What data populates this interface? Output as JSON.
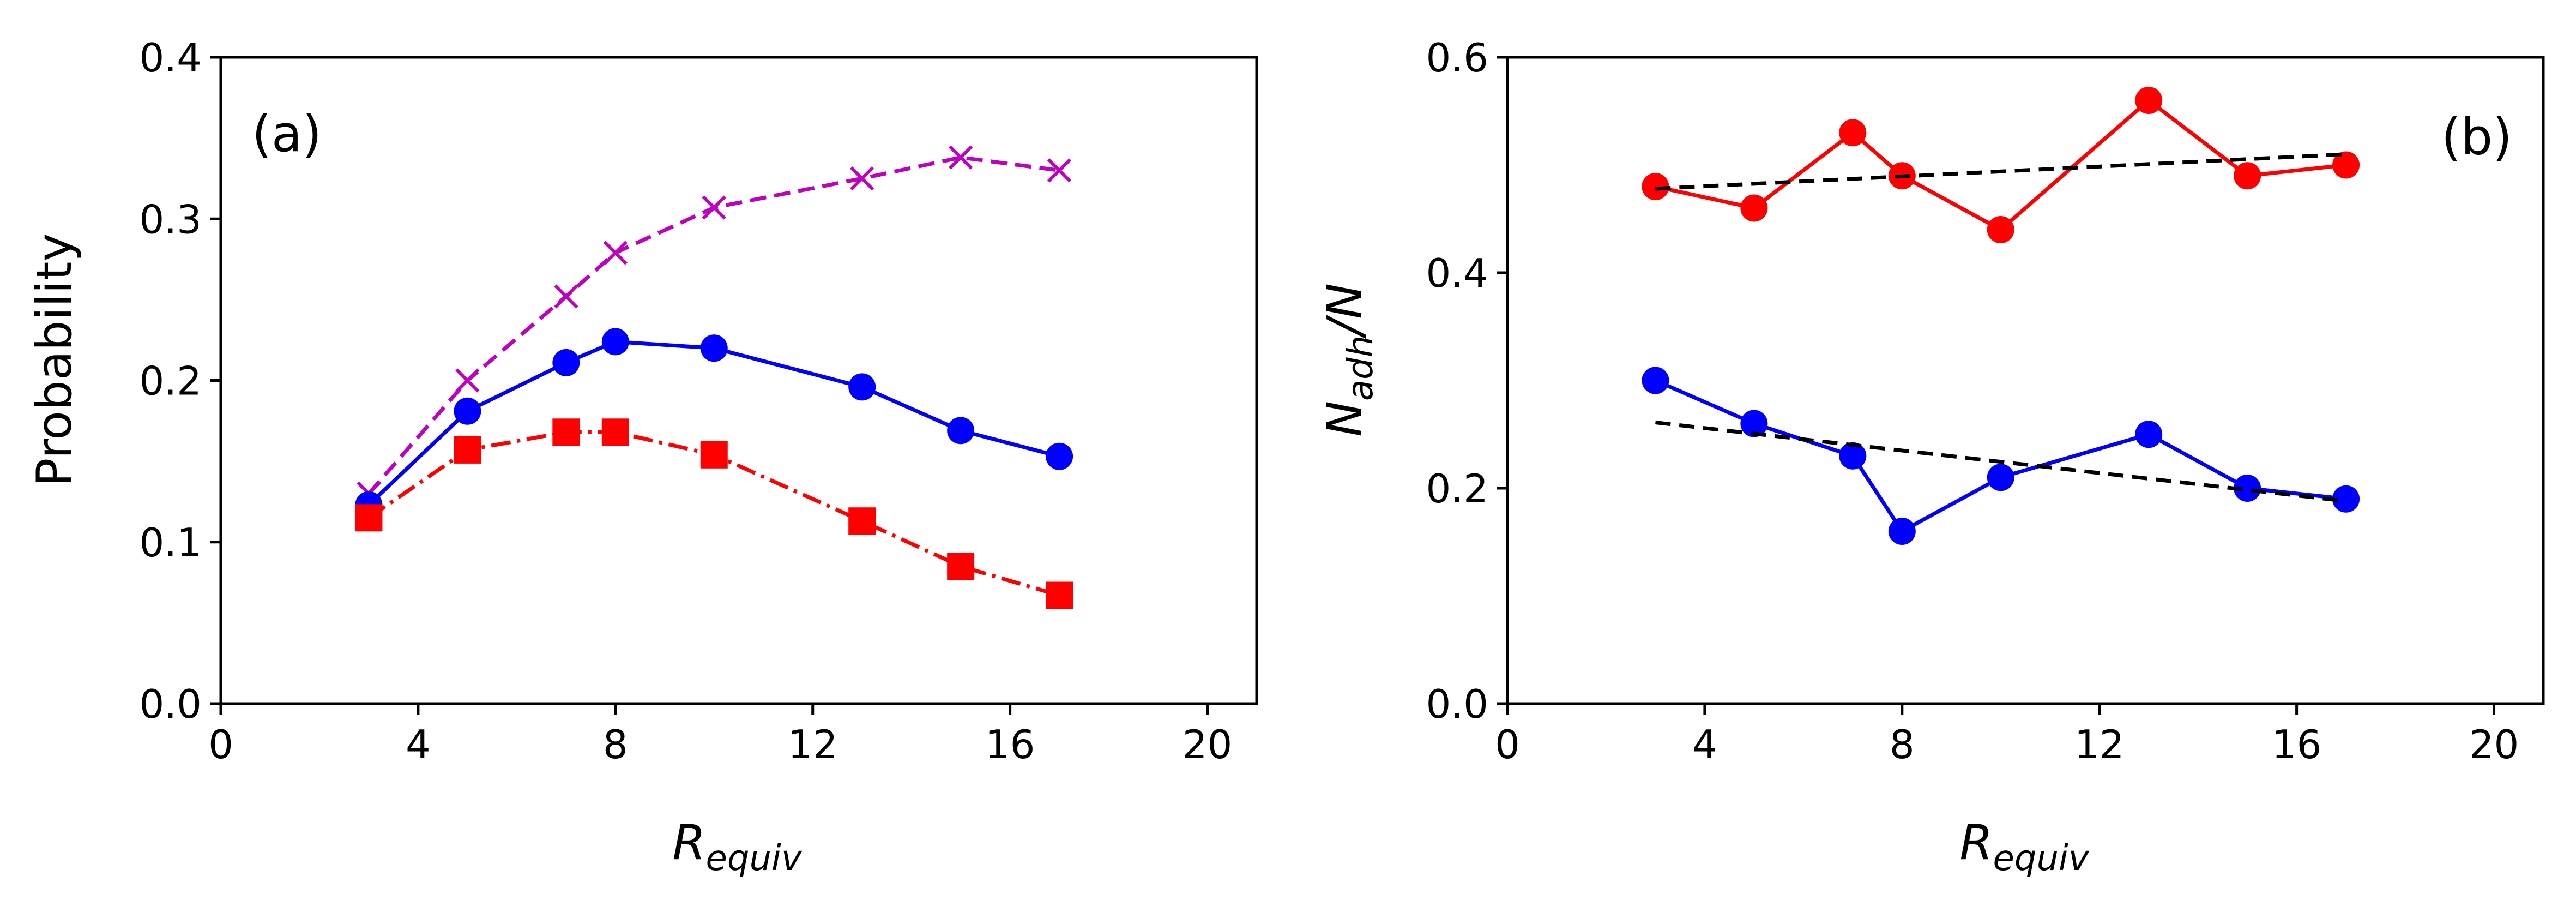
{
  "chart_data": [
    {
      "type": "line",
      "panel_label": "(a)",
      "xlabel_main": "R",
      "xlabel_sub": "equiv",
      "ylabel": "Probability",
      "xlim": [
        0,
        21
      ],
      "ylim": [
        0,
        0.4
      ],
      "xticks": [
        0,
        4,
        8,
        12,
        16,
        20
      ],
      "yticks": [
        0.0,
        0.1,
        0.2,
        0.3,
        0.4
      ],
      "xtick_labels": [
        "0",
        "4",
        "8",
        "12",
        "16",
        "20"
      ],
      "ytick_labels": [
        "0.0",
        "0.1",
        "0.2",
        "0.3",
        "0.4"
      ],
      "x": [
        3,
        5,
        7,
        8,
        10,
        13,
        15,
        17
      ],
      "series": [
        {
          "name": "magenta-dashed-x",
          "color": "#bf00bf",
          "dash": "dashed",
          "marker": "x",
          "values": [
            0.13,
            0.2,
            0.252,
            0.279,
            0.307,
            0.325,
            0.338,
            0.33
          ]
        },
        {
          "name": "blue-solid-circle",
          "color": "#0000ff",
          "dash": "solid",
          "marker": "circle",
          "values": [
            0.123,
            0.181,
            0.211,
            0.224,
            0.22,
            0.196,
            0.169,
            0.153
          ]
        },
        {
          "name": "red-dashdot-square",
          "color": "#ff0000",
          "dash": "dashdot",
          "marker": "square",
          "values": [
            0.115,
            0.157,
            0.168,
            0.168,
            0.154,
            0.113,
            0.085,
            0.067
          ]
        }
      ]
    },
    {
      "type": "line",
      "panel_label": "(b)",
      "xlabel_main": "R",
      "xlabel_sub": "equiv",
      "ylabel_main_1": "N",
      "ylabel_sub": "adh",
      "ylabel_main_2": "/N",
      "xlim": [
        0,
        21
      ],
      "ylim": [
        0,
        0.6
      ],
      "xticks": [
        0,
        4,
        8,
        12,
        16,
        20
      ],
      "yticks": [
        0.0,
        0.2,
        0.4,
        0.6
      ],
      "xtick_labels": [
        "0",
        "4",
        "8",
        "12",
        "16",
        "20"
      ],
      "ytick_labels": [
        "0.0",
        "0.2",
        "0.4",
        "0.6"
      ],
      "x": [
        3,
        5,
        7,
        8,
        10,
        13,
        15,
        17
      ],
      "series": [
        {
          "name": "red-solid-circle",
          "color": "#ff0000",
          "dash": "solid",
          "marker": "circle",
          "values": [
            0.48,
            0.46,
            0.53,
            0.49,
            0.44,
            0.56,
            0.49,
            0.5
          ]
        },
        {
          "name": "blue-solid-circle",
          "color": "#0000ff",
          "dash": "solid",
          "marker": "circle",
          "values": [
            0.3,
            0.26,
            0.23,
            0.16,
            0.21,
            0.25,
            0.2,
            0.19
          ]
        },
        {
          "name": "red-fit-line",
          "color": "#000000",
          "dash": "fit",
          "marker": "none",
          "x": [
            3,
            17
          ],
          "values": [
            0.478,
            0.51
          ]
        },
        {
          "name": "blue-fit-line",
          "color": "#000000",
          "dash": "fit",
          "marker": "none",
          "x": [
            3,
            17
          ],
          "values": [
            0.261,
            0.188
          ]
        }
      ]
    }
  ]
}
